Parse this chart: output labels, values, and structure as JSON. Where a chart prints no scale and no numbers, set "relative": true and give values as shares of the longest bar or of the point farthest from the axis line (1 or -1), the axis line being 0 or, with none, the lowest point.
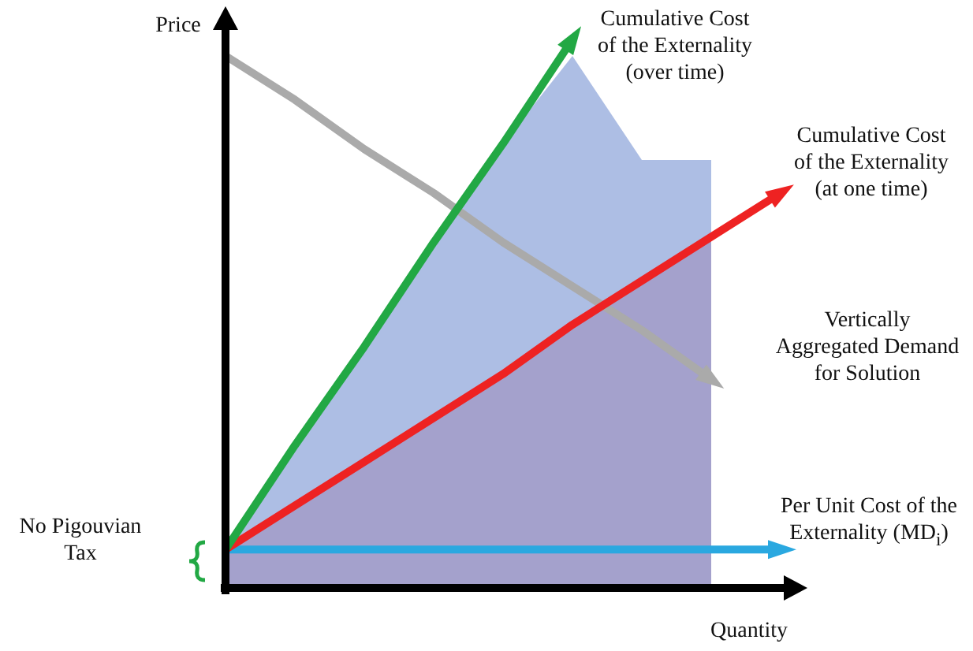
{
  "chart_data": {
    "type": "line",
    "relative": true,
    "xlabel": "Quantity",
    "ylabel": "Price",
    "categories": [
      null,
      null,
      null,
      null,
      null,
      null,
      null,
      null,
      null
    ],
    "series": [
      {
        "type": "area",
        "color": "#4a6fc4",
        "values": [
          0.07,
          0.26,
          0.44,
          0.63,
          0.81,
          0.97,
          0.78,
          0.78,
          null
        ]
      },
      {
        "type": "area",
        "color": "#d98aa0",
        "values": [
          0.07,
          0.15,
          0.23,
          0.31,
          0.39,
          0.48,
          0.56,
          0.64,
          null
        ]
      },
      {
        "name": "Cumulative Cost of the Externality (over time)",
        "color": "#22a844",
        "values": [
          0.07,
          0.26,
          0.44,
          0.63,
          0.81,
          1.0,
          null,
          null,
          null
        ]
      },
      {
        "name": "Cumulative Cost of the Externality (at one time)",
        "color": "#ee2222",
        "values": [
          0.07,
          0.15,
          0.23,
          0.31,
          0.39,
          0.48,
          0.56,
          0.64,
          0.72
        ]
      },
      {
        "name": "Vertically Aggregated Demand for Solution",
        "color": "#aaaaaa",
        "values": [
          0.97,
          0.89,
          0.8,
          0.72,
          0.63,
          0.55,
          0.47,
          0.38,
          null
        ]
      },
      {
        "name": "Per Unit Cost of the Externality (MD$_{i}$)",
        "color": "#2aa8e0",
        "values": [
          0.07,
          0.07,
          0.07,
          0.07,
          0.07,
          0.07,
          0.07,
          0.07,
          0.07
        ]
      }
    ],
    "annotations": [
      "No Pigouvian Tax"
    ],
    "legend": false,
    "marker": "none",
    "line_style": "solid",
    "tick_labels": false
  }
}
